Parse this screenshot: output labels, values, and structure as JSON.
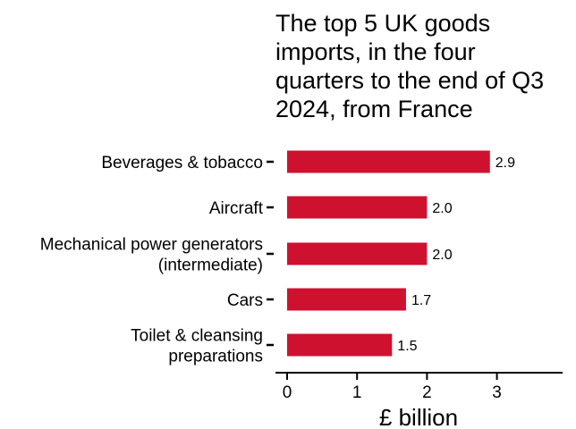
{
  "chart_data": {
    "type": "bar",
    "orientation": "horizontal",
    "title_lines": [
      "The top 5 UK goods",
      "imports, in the four",
      "quarters to the end of Q3",
      "2024, from France"
    ],
    "categories": [
      [
        "Beverages & tobacco"
      ],
      [
        "Aircraft"
      ],
      [
        "Mechanical power generators",
        "(intermediate)"
      ],
      [
        "Cars"
      ],
      [
        "Toilet & cleansing",
        "preparations"
      ]
    ],
    "values": [
      2.9,
      2.0,
      2.0,
      1.7,
      1.5
    ],
    "value_labels": [
      "2.9",
      "2.0",
      "2.0",
      "1.7",
      "1.5"
    ],
    "xlabel": "£ billion",
    "xticks": [
      "0",
      "1",
      "2",
      "3"
    ],
    "xlim": [
      0,
      3.85
    ],
    "bar_color": "#cf1130",
    "grid": false,
    "legend": "none"
  }
}
